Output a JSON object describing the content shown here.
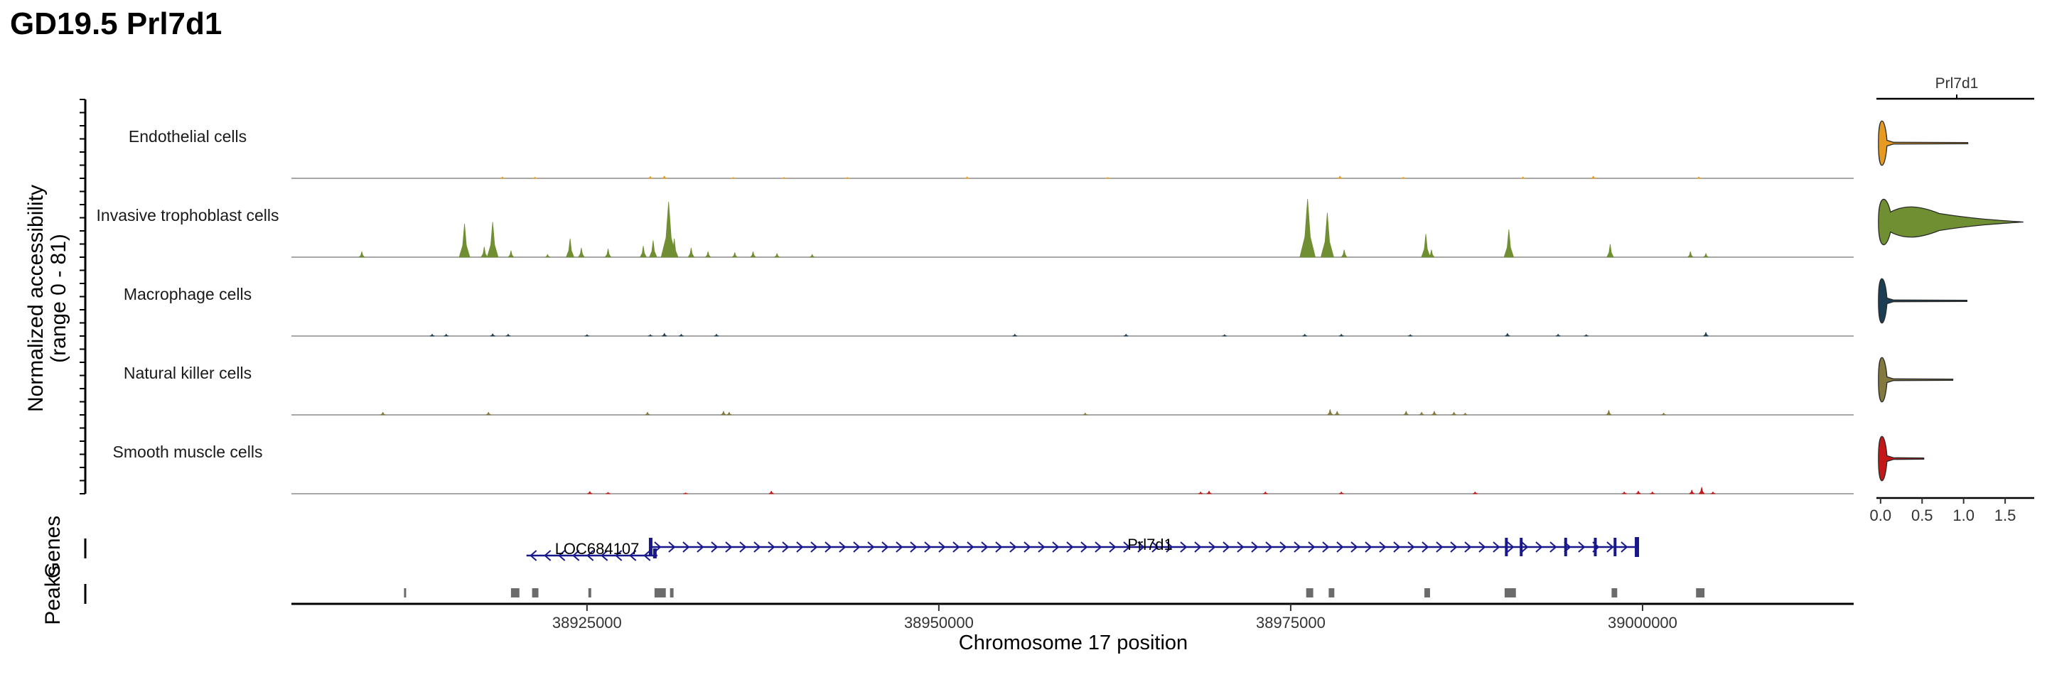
{
  "chart_data": {
    "type": "area",
    "title": "GD19.5 Prl7d1",
    "ylabel_line1": "Normalized accessibility",
    "ylabel_line2": "(range 0 - 81)",
    "xlabel": "Chromosome 17 position",
    "xlim": [
      38904000,
      39015000
    ],
    "x_ticks": [
      38925000,
      38950000,
      38975000,
      39000000
    ],
    "x_tick_labels": [
      "38925000",
      "38950000",
      "38975000",
      "39000000"
    ],
    "ylim": [
      0,
      81
    ],
    "tracks": [
      {
        "name": "Endothelial cells",
        "color": "#e69a22",
        "peaks": [
          [
            38919000,
            1.5
          ],
          [
            38921300,
            1.2
          ],
          [
            38929500,
            2
          ],
          [
            38930500,
            2.5
          ],
          [
            38935400,
            1
          ],
          [
            38939000,
            1
          ],
          [
            38943500,
            1
          ],
          [
            38952000,
            1.5
          ],
          [
            38962000,
            1
          ],
          [
            38978500,
            2.5
          ],
          [
            38983000,
            1.2
          ],
          [
            38991500,
            1.5
          ],
          [
            38996500,
            2.5
          ],
          [
            39004000,
            1.5
          ]
        ]
      },
      {
        "name": "Invasive trophoblast cells",
        "color": "#6f8f32",
        "peaks": [
          [
            38909000,
            6
          ],
          [
            38916300,
            36
          ],
          [
            38917700,
            11
          ],
          [
            38918300,
            38
          ],
          [
            38919600,
            7
          ],
          [
            38922200,
            3
          ],
          [
            38923800,
            20
          ],
          [
            38924600,
            10
          ],
          [
            38926500,
            9
          ],
          [
            38929000,
            12
          ],
          [
            38929700,
            18
          ],
          [
            38930800,
            60
          ],
          [
            38931200,
            20
          ],
          [
            38932400,
            10
          ],
          [
            38933600,
            6
          ],
          [
            38935500,
            5
          ],
          [
            38936800,
            6
          ],
          [
            38938500,
            4
          ],
          [
            38941000,
            3
          ],
          [
            38976200,
            63
          ],
          [
            38977600,
            48
          ],
          [
            38978800,
            8
          ],
          [
            38984600,
            25
          ],
          [
            38985000,
            8
          ],
          [
            38990500,
            30
          ],
          [
            38997700,
            14
          ],
          [
            39003400,
            6
          ],
          [
            39004500,
            4
          ]
        ]
      },
      {
        "name": "Macrophage cells",
        "color": "#1c3e52",
        "peaks": [
          [
            38914000,
            2
          ],
          [
            38915000,
            2
          ],
          [
            38918300,
            2.5
          ],
          [
            38919400,
            2
          ],
          [
            38925000,
            1.5
          ],
          [
            38929500,
            1.5
          ],
          [
            38930500,
            3
          ],
          [
            38931700,
            2
          ],
          [
            38934200,
            2
          ],
          [
            38955400,
            2
          ],
          [
            38963300,
            2
          ],
          [
            38970300,
            1.5
          ],
          [
            38976000,
            2
          ],
          [
            38978600,
            2
          ],
          [
            38983500,
            1.5
          ],
          [
            38990400,
            3
          ],
          [
            38994000,
            2
          ],
          [
            38996000,
            1.5
          ],
          [
            39004500,
            4
          ]
        ]
      },
      {
        "name": "Natural killer cells",
        "color": "#83793f",
        "peaks": [
          [
            38910500,
            3
          ],
          [
            38918000,
            3
          ],
          [
            38929300,
            3
          ],
          [
            38934700,
            4
          ],
          [
            38935100,
            3
          ],
          [
            38960400,
            2
          ],
          [
            38977800,
            6
          ],
          [
            38978300,
            4
          ],
          [
            38983200,
            4
          ],
          [
            38984300,
            3
          ],
          [
            38985200,
            4
          ],
          [
            38986600,
            3
          ],
          [
            38987400,
            2
          ],
          [
            38997600,
            5
          ],
          [
            39001500,
            2
          ]
        ]
      },
      {
        "name": "Smooth muscle cells",
        "color": "#c41818",
        "peaks": [
          [
            38925200,
            2.5
          ],
          [
            38926500,
            1.5
          ],
          [
            38932000,
            1
          ],
          [
            38938100,
            3
          ],
          [
            38968600,
            2
          ],
          [
            38969200,
            3
          ],
          [
            38973200,
            2
          ],
          [
            38978600,
            2
          ],
          [
            38988100,
            2
          ],
          [
            38998700,
            2
          ],
          [
            38999700,
            3
          ],
          [
            39000700,
            2
          ],
          [
            39003500,
            4
          ],
          [
            39004200,
            7
          ],
          [
            39005000,
            2
          ]
        ]
      }
    ],
    "genes": [
      {
        "name": "LOC684107",
        "start": 38920700,
        "end": 38930000,
        "strand": "-",
        "color": "#18188c"
      },
      {
        "name": "Prl7d1",
        "start": 38929500,
        "end": 38999700,
        "strand": "+",
        "color": "#18188c"
      }
    ],
    "peaks_label": "Peaks",
    "genes_label": "Genes",
    "peak_regions": [
      [
        38912000,
        38912150
      ],
      [
        38919600,
        38920200
      ],
      [
        38921100,
        38921550
      ],
      [
        38925100,
        38925300
      ],
      [
        38929800,
        38930600
      ],
      [
        38930900,
        38931150
      ],
      [
        38976100,
        38976600
      ],
      [
        38977700,
        38978100
      ],
      [
        38984500,
        38984900
      ],
      [
        38990200,
        38991000
      ],
      [
        38997800,
        38998200
      ],
      [
        39003800,
        39004400
      ]
    ],
    "violin": {
      "title": "Prl7d1",
      "x_ticks": [
        0.0,
        0.5,
        1.0,
        1.5
      ],
      "x_tick_labels": [
        "0.0",
        "0.5",
        "1.0",
        "1.5"
      ],
      "xlim": [
        -0.05,
        1.85
      ],
      "groups": [
        {
          "name": "Endothelial cells",
          "color": "#e69a22",
          "max": 1.05
        },
        {
          "name": "Invasive trophoblast cells",
          "color": "#6f8f32",
          "max": 1.72
        },
        {
          "name": "Macrophage cells",
          "color": "#1c3e52",
          "max": 1.04
        },
        {
          "name": "Natural killer cells",
          "color": "#83793f",
          "max": 0.87
        },
        {
          "name": "Smooth muscle cells",
          "color": "#c41818",
          "max": 0.52
        }
      ]
    }
  }
}
